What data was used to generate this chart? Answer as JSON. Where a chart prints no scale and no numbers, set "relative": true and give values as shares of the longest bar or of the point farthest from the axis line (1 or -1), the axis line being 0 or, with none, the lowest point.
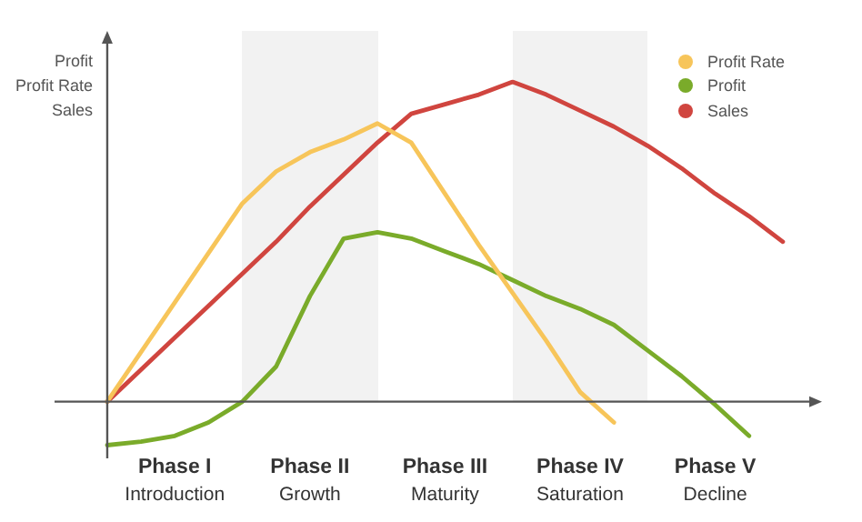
{
  "chart_data": {
    "type": "line",
    "relative": true,
    "ylabel": "Profit\nProfit Rate\nSales",
    "legend": "top right",
    "categories": [
      null,
      null,
      "Phase I\nIntroduction",
      null,
      null,
      null,
      "Phase II\nGrowth",
      null,
      null,
      null,
      "Phase III\nMaturity",
      null,
      null,
      null,
      "Phase IV\nSaturation",
      null,
      null,
      null,
      "Phase V\nDecline",
      null,
      null
    ],
    "series": [
      {
        "name": "Profit Rate",
        "color": "#f7c55a",
        "values": [
          0,
          0.155,
          0.31,
          0.465,
          0.62,
          0.72,
          0.78,
          0.82,
          0.87,
          0.81,
          0.65,
          0.49,
          0.34,
          0.19,
          0.03,
          -0.065,
          null,
          null,
          null,
          null,
          null
        ]
      },
      {
        "name": "Profit",
        "color": "#7aab2a",
        "values": [
          -0.136,
          -0.125,
          -0.107,
          -0.065,
          0,
          0.11,
          0.33,
          0.51,
          0.53,
          0.51,
          0.47,
          0.43,
          0.38,
          0.33,
          0.29,
          0.24,
          0.16,
          0.08,
          -0.01,
          -0.107,
          null
        ]
      },
      {
        "name": "Sales",
        "color": "#d0453f",
        "values": [
          0,
          0.1,
          0.2,
          0.3,
          0.4,
          0.5,
          0.61,
          0.71,
          0.81,
          0.9,
          0.93,
          0.96,
          1,
          0.96,
          0.91,
          0.86,
          0.8,
          0.73,
          0.65,
          0.58,
          0.5
        ]
      }
    ]
  }
}
